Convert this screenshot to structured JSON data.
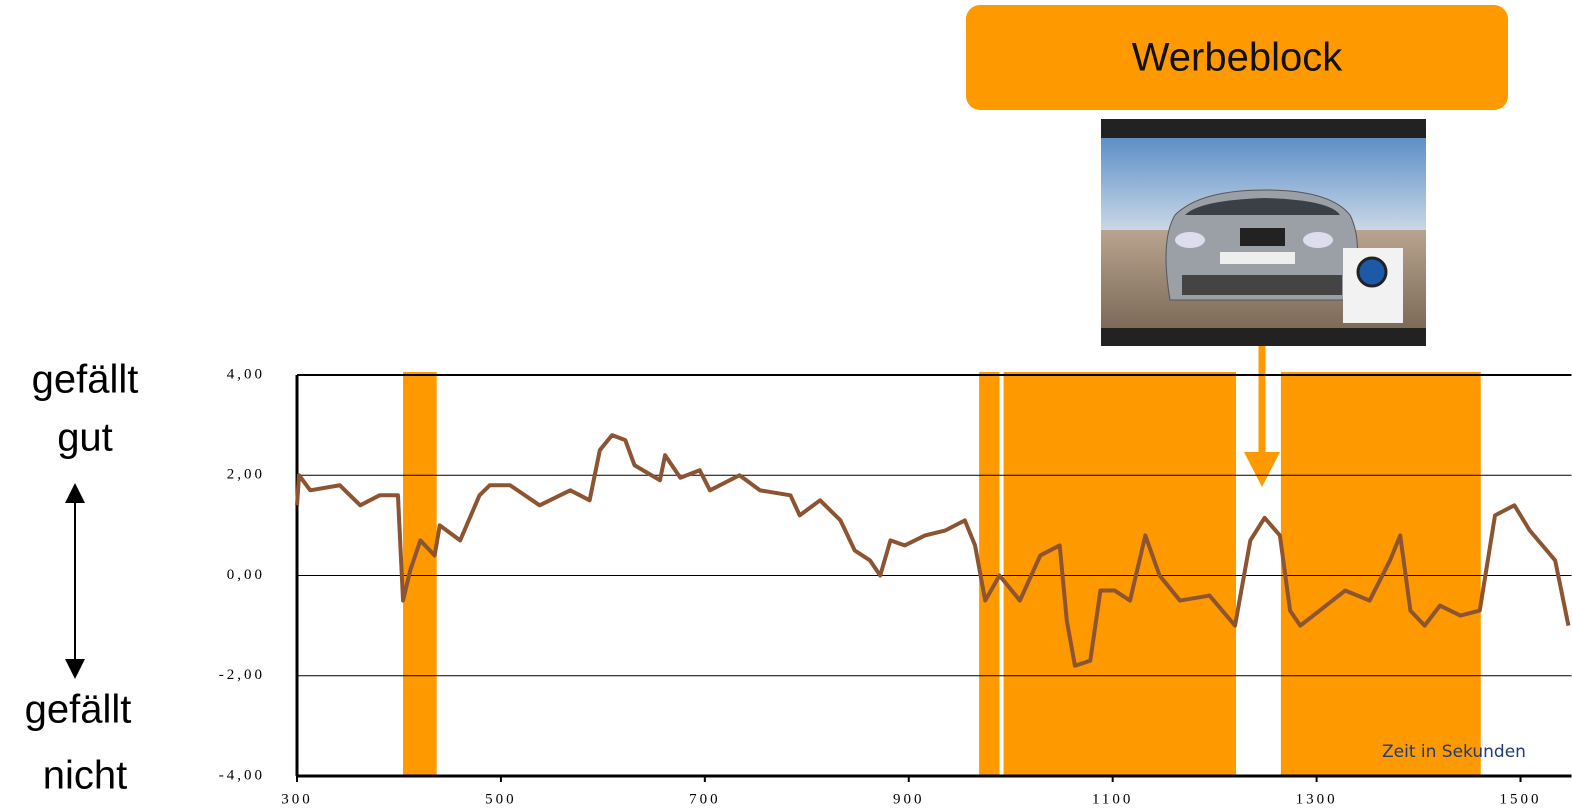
{
  "chart_data": {
    "type": "line",
    "annotation": "Werbeblock",
    "x_label": "Zeit in Sekunden",
    "y_label_top": [
      "gefällt",
      "gut"
    ],
    "y_label_bottom": [
      "gefällt",
      "nicht"
    ],
    "color": "#8c5430",
    "band_color": "#ff9900",
    "bands": [
      [
        404,
        437
      ],
      [
        969,
        989
      ],
      [
        993,
        1221
      ],
      [
        1265,
        1461
      ]
    ],
    "x": [
      300,
      302,
      313,
      342,
      362,
      381,
      399,
      404,
      411,
      421,
      435,
      440,
      460,
      479,
      489,
      509,
      538,
      568,
      587,
      597,
      609,
      622,
      631,
      656,
      661,
      676,
      695,
      705,
      734,
      754,
      784,
      793,
      813,
      833,
      847,
      862,
      872,
      882,
      896,
      916,
      936,
      955,
      965,
      975,
      989,
      1009,
      1029,
      1048,
      1055,
      1063,
      1078,
      1088,
      1102,
      1117,
      1132,
      1146,
      1166,
      1195,
      1220,
      1235,
      1249,
      1264,
      1274,
      1284,
      1303,
      1328,
      1352,
      1372,
      1382,
      1392,
      1406,
      1421,
      1441,
      1460,
      1475,
      1494,
      1509,
      1534,
      1547
    ],
    "values": [
      1.4,
      2.0,
      1.7,
      1.8,
      1.4,
      1.6,
      1.6,
      -0.5,
      0.1,
      0.7,
      0.4,
      1.0,
      0.7,
      1.6,
      1.8,
      1.8,
      1.4,
      1.7,
      1.5,
      2.5,
      2.8,
      2.7,
      2.2,
      1.9,
      2.4,
      1.95,
      2.1,
      1.7,
      2.0,
      1.7,
      1.6,
      1.2,
      1.5,
      1.1,
      0.5,
      0.3,
      0.0,
      0.7,
      0.6,
      0.8,
      0.9,
      1.1,
      0.6,
      -0.5,
      0.0,
      -0.5,
      0.4,
      0.6,
      -0.9,
      -1.8,
      -1.7,
      -0.3,
      -0.3,
      -0.5,
      0.8,
      0.0,
      -0.5,
      -0.4,
      -1.0,
      0.7,
      1.15,
      0.8,
      -0.7,
      -1.0,
      -0.7,
      -0.3,
      -0.5,
      0.3,
      0.8,
      -0.7,
      -1.0,
      -0.6,
      -0.8,
      -0.7,
      1.2,
      1.4,
      0.9,
      0.3,
      -1.0
    ],
    "xlim": [
      300,
      1550
    ],
    "ylim": [
      -4,
      4
    ],
    "xticks": [
      300,
      500,
      700,
      900,
      1100,
      1300,
      1500
    ],
    "yticks": [
      {
        "value": 4,
        "label": "4,00"
      },
      {
        "value": 2,
        "label": "2,00"
      },
      {
        "value": 0,
        "label": "0,00"
      },
      {
        "value": -2,
        "label": "-2,00"
      },
      {
        "value": -4,
        "label": "-4,00"
      }
    ],
    "grid": true
  }
}
